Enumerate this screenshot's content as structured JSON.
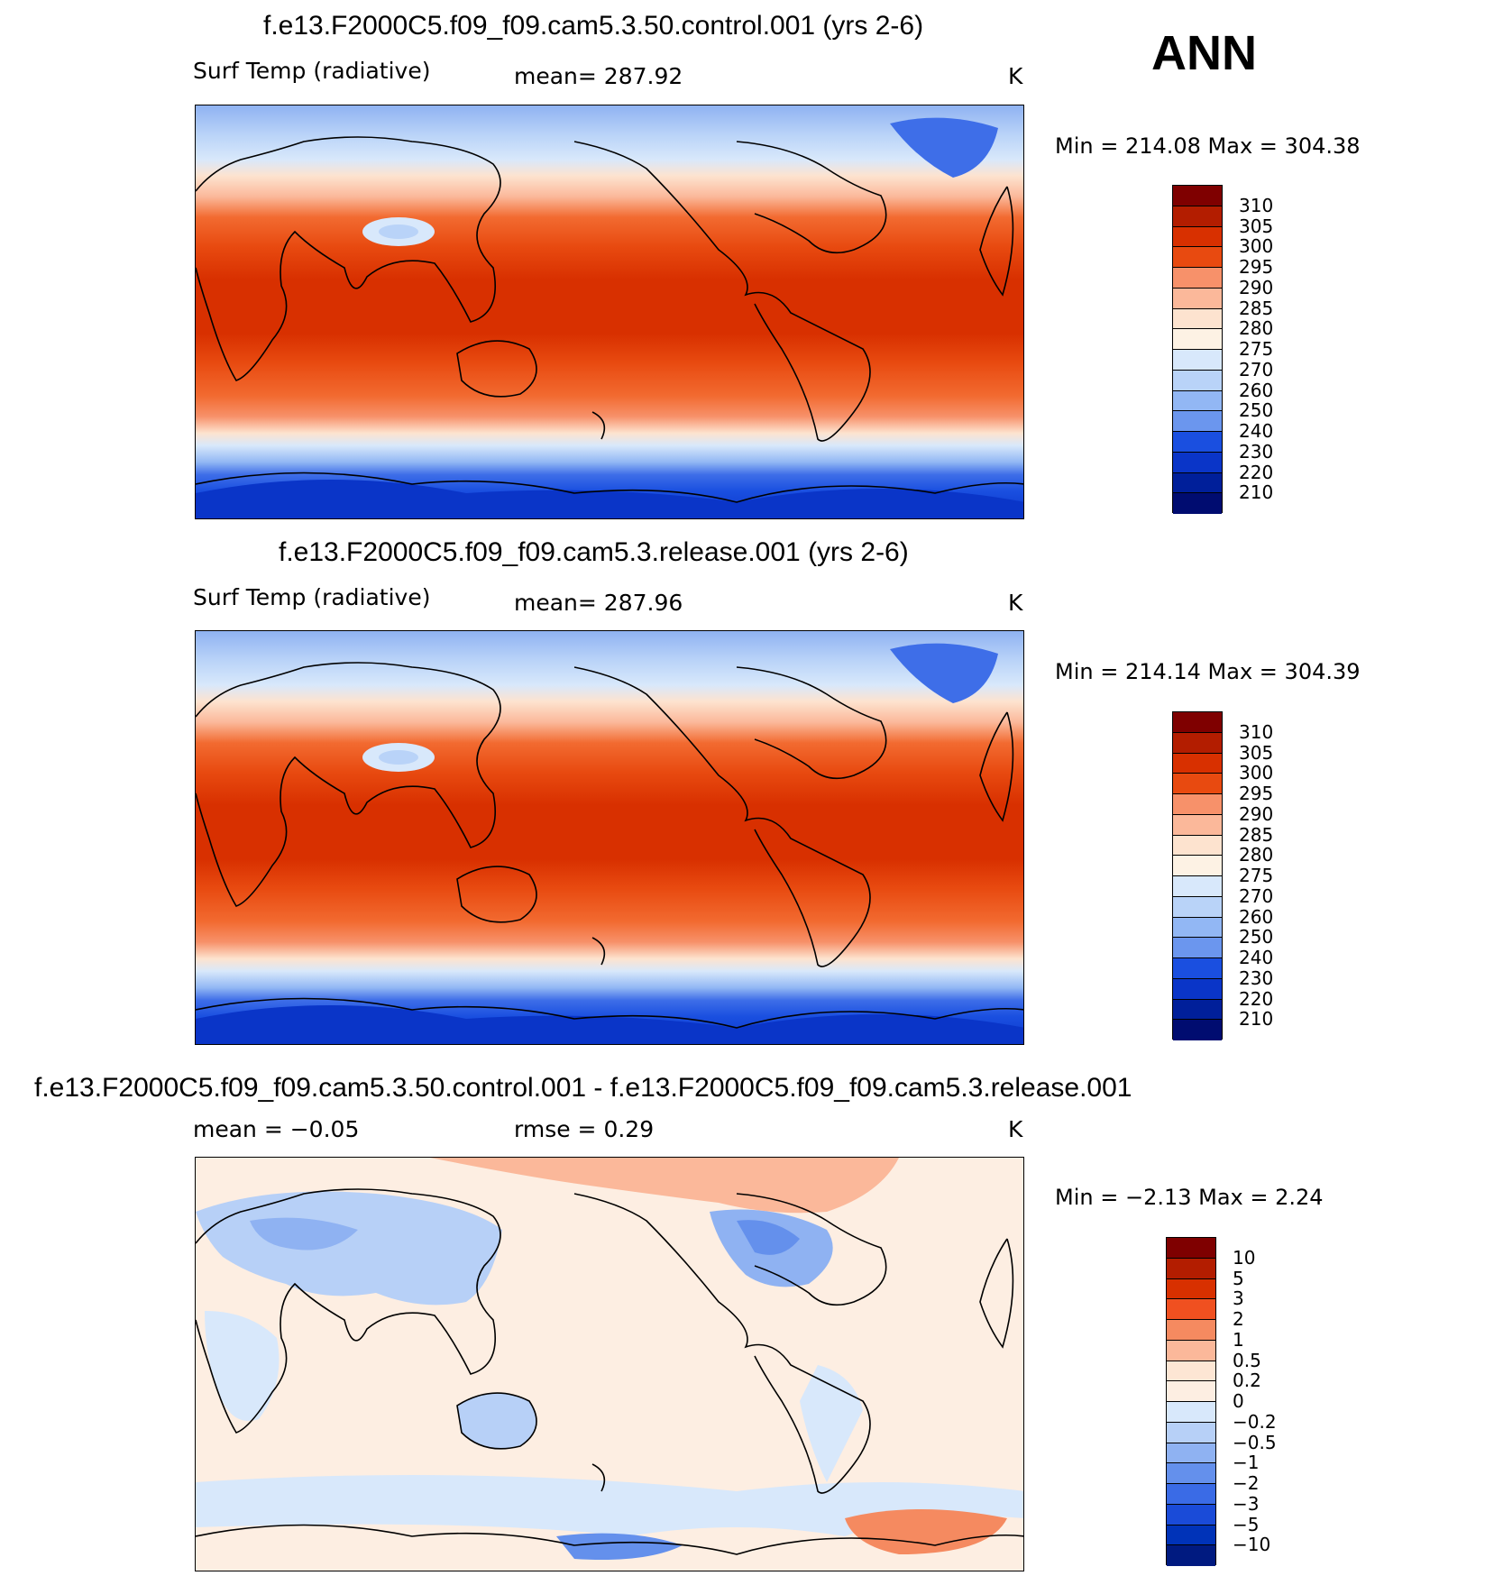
{
  "season": "ANN",
  "panels": [
    {
      "title": "f.e13.F2000C5.f09_f09.cam5.3.50.control.001 (yrs 2-6)",
      "left_label": "Surf Temp (radiative)",
      "center_label": "mean=  287.92",
      "units": "K",
      "minmax": "Min  =  214.08  Max  =  304.38",
      "type": "abs",
      "levels": [
        "310",
        "305",
        "300",
        "295",
        "290",
        "285",
        "280",
        "275",
        "270",
        "260",
        "250",
        "240",
        "230",
        "220",
        "210"
      ]
    },
    {
      "title": "f.e13.F2000C5.f09_f09.cam5.3.release.001 (yrs 2-6)",
      "left_label": "Surf Temp (radiative)",
      "center_label": "mean=  287.96",
      "units": "K",
      "minmax": "Min  =  214.14  Max  =  304.39",
      "type": "abs",
      "levels": [
        "310",
        "305",
        "300",
        "295",
        "290",
        "285",
        "280",
        "275",
        "270",
        "260",
        "250",
        "240",
        "230",
        "220",
        "210"
      ]
    },
    {
      "title": "f.e13.F2000C5.f09_f09.cam5.3.50.control.001 - f.e13.F2000C5.f09_f09.cam5.3.release.001",
      "left_label": "mean =    −0.05",
      "center_label": "rmse =     0.29",
      "units": "K",
      "minmax": "Min  =    −2.13  Max  =     2.24",
      "type": "diff",
      "levels": [
        "10",
        "5",
        "3",
        "2",
        "1",
        "0.5",
        "0.2",
        "0",
        "−0.2",
        "−0.5",
        "−1",
        "−2",
        "−3",
        "−5",
        "−10"
      ]
    }
  ],
  "colors": {
    "abs_scale": [
      "#7f0000",
      "#b31d00",
      "#d83000",
      "#e84a10",
      "#f26a30",
      "#f7916a",
      "#fbb89a",
      "#fde3cf",
      "#fdf2e4",
      "#d8e8fb",
      "#b9d3f8",
      "#92b7f4",
      "#6b96ee",
      "#3e6ee8",
      "#1a4fe0",
      "#0a35c8",
      "#001f9a",
      "#000c70"
    ],
    "diff_scale": [
      "#7f0000",
      "#b31d00",
      "#d83000",
      "#f05020",
      "#f58a60",
      "#fbb89a",
      "#fde6d4",
      "#fdeee2",
      "#d8e8fb",
      "#b7d0f7",
      "#8fb2f2",
      "#6490ec",
      "#3a6be6",
      "#1a4bd8",
      "#0033b8",
      "#001a80"
    ],
    "coastline": "#000000"
  }
}
